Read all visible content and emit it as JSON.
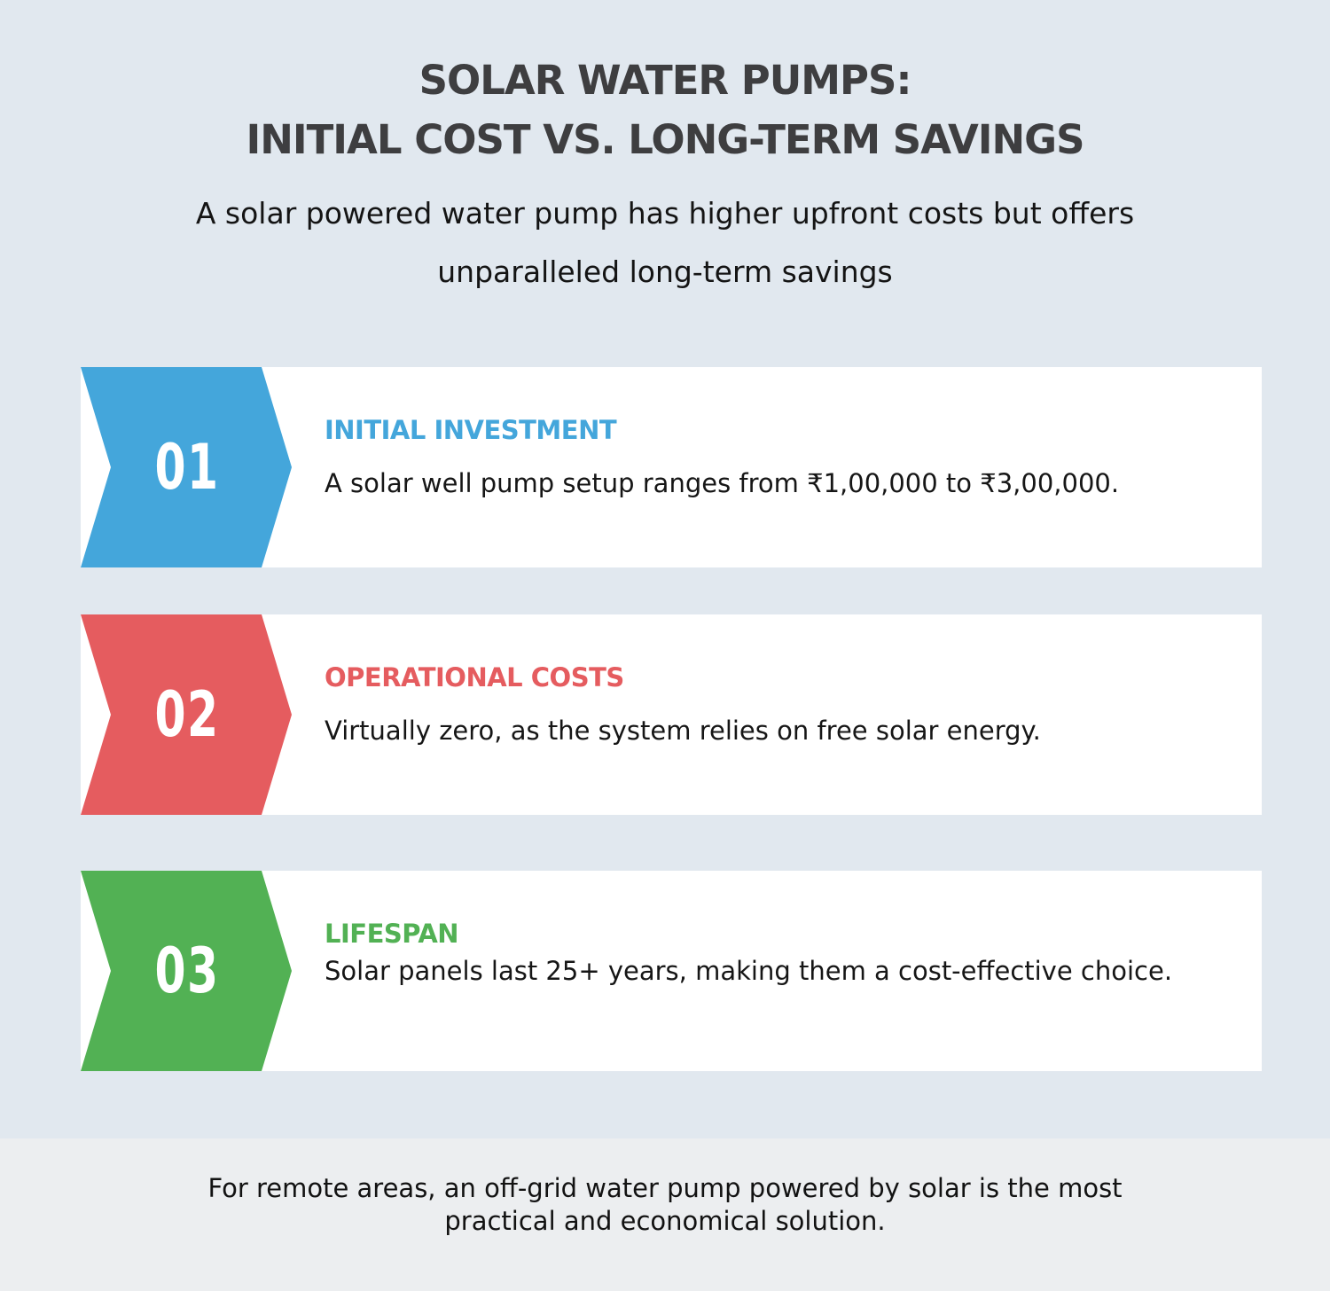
{
  "header": {
    "title_line1": "SOLAR WATER PUMPS:",
    "title_line2": "INITIAL COST VS. LONG-TERM SAVINGS",
    "subtitle_line1": "A solar powered water pump has higher upfront costs but offers",
    "subtitle_line2": "unparalleled long-term savings"
  },
  "cards": [
    {
      "number": "01",
      "title": "INITIAL INVESTMENT",
      "text": "A solar well pump setup ranges from ₹1,00,000 to ₹3,00,000.",
      "color": "#44a6db"
    },
    {
      "number": "02",
      "title": "OPERATIONAL COSTS",
      "text": "Virtually zero, as the system relies on free solar energy.",
      "color": "#e55c5f"
    },
    {
      "number": "03",
      "title": "LIFESPAN",
      "text": "Solar panels last 25+ years, making them a cost-effective choice.",
      "color": "#52b154"
    }
  ],
  "footer": {
    "line1": "For remote areas, an off-grid water pump powered by solar is the most",
    "line2": "practical and economical solution."
  },
  "colors": {
    "background": "#e1e8ef",
    "card_background": "#ffffff",
    "title_text": "#3e3e40",
    "footer_background": "#eceef0"
  }
}
